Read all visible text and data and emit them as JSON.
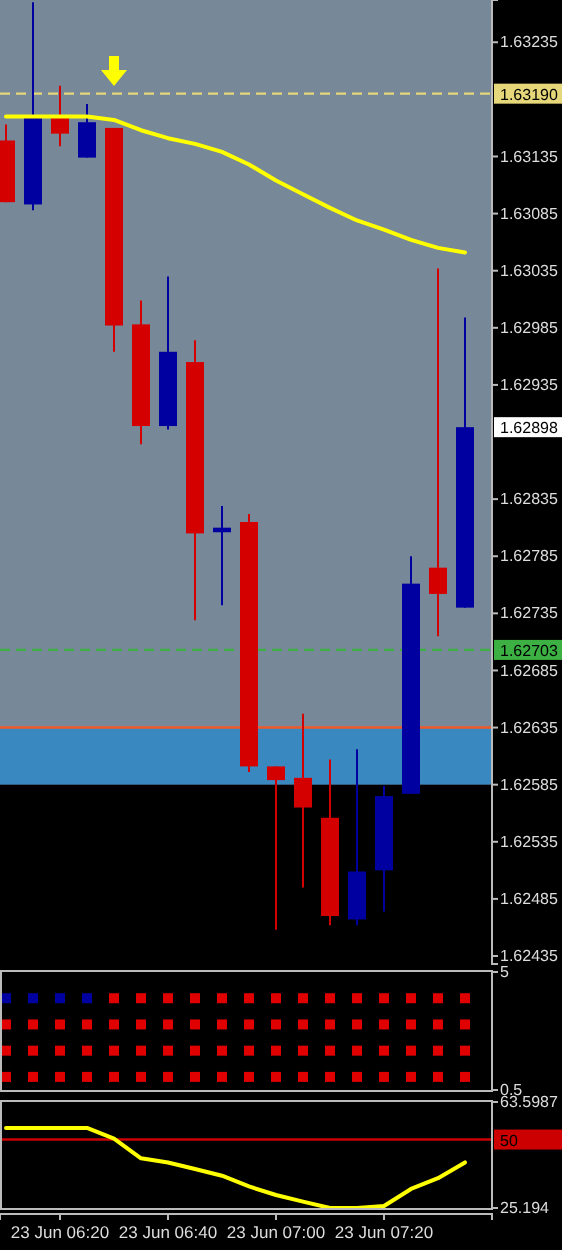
{
  "chart_data": [
    {
      "type": "candlestick",
      "categories": [
        null,
        null,
        null,
        null,
        null,
        null,
        null,
        null,
        null,
        null,
        null,
        null,
        null,
        null,
        null,
        null,
        null,
        null
      ],
      "tick_labels": "y",
      "ylim": [
        1.62428,
        1.63272
      ],
      "yticks": [
        1.63235,
        1.63135,
        1.63085,
        1.63035,
        1.62985,
        1.62935,
        1.62835,
        1.62785,
        1.62735,
        1.62685,
        1.62635,
        1.62585,
        1.62535,
        1.62485,
        1.62435
      ],
      "series": [
        {
          "ohlc": [
            [
              1.63149,
              1.63163,
              1.63095,
              1.63095
            ],
            [
              1.63093,
              1.6327,
              1.63088,
              1.6317
            ],
            [
              1.6317,
              1.63197,
              1.63144,
              1.63155
            ],
            [
              1.63134,
              1.63181,
              1.63134,
              1.63165
            ],
            [
              1.6316,
              1.6316,
              1.62964,
              1.62987
            ],
            [
              1.62988,
              1.63009,
              1.62883,
              1.62899
            ],
            [
              1.62899,
              1.6303,
              1.62896,
              1.62964
            ],
            [
              1.62955,
              1.62974,
              1.62729,
              1.62805
            ],
            [
              1.62806,
              1.62829,
              1.62742,
              1.6281
            ],
            [
              1.62815,
              1.62822,
              1.62596,
              1.62601
            ],
            [
              1.62601,
              1.62601,
              1.62458,
              1.62589
            ],
            [
              1.62591,
              1.62647,
              1.62495,
              1.62565
            ],
            [
              1.62556,
              1.62607,
              1.62462,
              1.6247
            ],
            [
              1.62467,
              1.62616,
              1.62462,
              1.62509
            ],
            [
              1.6251,
              1.62584,
              1.62474,
              1.62575
            ],
            [
              1.62577,
              1.62785,
              1.62577,
              1.62761
            ],
            [
              1.62775,
              1.63037,
              1.62715,
              1.62752
            ],
            [
              1.6274,
              1.62994,
              1.6274,
              1.62898
            ]
          ],
          "colors": [
            "#d40000",
            "#0000a0",
            "#d40000",
            "#0000a0",
            "#d40000",
            "#d40000",
            "#0000a0",
            "#d40000",
            "#0000a0",
            "#d40000",
            "#d40000",
            "#d40000",
            "#d40000",
            "#0000a0",
            "#0000a0",
            "#0000a0",
            "#d40000",
            "#0000a0"
          ]
        },
        {
          "type": "line",
          "color": "#ffff00",
          "values": [
            1.6317,
            1.6317,
            1.6317,
            1.6317,
            1.63167,
            1.63158,
            1.63151,
            1.63146,
            1.63139,
            1.63128,
            1.63114,
            1.63102,
            1.6309,
            1.63079,
            1.63071,
            1.63062,
            1.63055,
            1.63051
          ]
        }
      ],
      "ref_lines": [
        {
          "axis": "y",
          "value": 1.6319,
          "label": "1.63190",
          "color": "#e6d87a",
          "line_style": "dashed"
        },
        {
          "axis": "y",
          "value": 1.62703,
          "label": "1.62703",
          "color": "#3cb043",
          "line_style": "dashed"
        },
        {
          "axis": "y",
          "value": 1.62635,
          "color": "#f05a28",
          "line_style": "solid"
        }
      ],
      "bands": [
        {
          "axis": "y",
          "from": 1.62585,
          "to": 1.62635,
          "color": "#3a88c0"
        },
        {
          "axis": "y",
          "from": 1.62428,
          "to": 1.62585,
          "color": "#000000"
        }
      ],
      "annotations": [
        "1.62898"
      ]
    },
    {
      "type": "scatter",
      "categories": [
        null,
        null,
        null,
        null,
        null,
        null,
        null,
        null,
        null,
        null,
        null,
        null,
        null,
        null,
        null,
        null,
        null,
        null
      ],
      "tick_labels": "y",
      "ylim": [
        0.5,
        5
      ],
      "yticks": [
        0.5,
        5
      ],
      "marker": "square",
      "series": [
        {
          "values": [
            4,
            4,
            4,
            4,
            4,
            4,
            4,
            4,
            4,
            4,
            4,
            4,
            4,
            4,
            4,
            4,
            4,
            4
          ],
          "colors": [
            "#0000a0",
            "#0000a0",
            "#0000a0",
            "#0000a0",
            "#e00000",
            "#e00000",
            "#e00000",
            "#e00000",
            "#e00000",
            "#e00000",
            "#e00000",
            "#e00000",
            "#e00000",
            "#e00000",
            "#e00000",
            "#e00000",
            "#e00000",
            "#e00000"
          ]
        },
        {
          "values": [
            3,
            3,
            3,
            3,
            3,
            3,
            3,
            3,
            3,
            3,
            3,
            3,
            3,
            3,
            3,
            3,
            3,
            3
          ],
          "color": "#e00000"
        },
        {
          "values": [
            2,
            2,
            2,
            2,
            2,
            2,
            2,
            2,
            2,
            2,
            2,
            2,
            2,
            2,
            2,
            2,
            2,
            2
          ],
          "color": "#e00000"
        },
        {
          "values": [
            1,
            1,
            1,
            1,
            1,
            1,
            1,
            1,
            1,
            1,
            1,
            1,
            1,
            1,
            1,
            1,
            1,
            1
          ],
          "color": "#e00000"
        }
      ]
    },
    {
      "type": "line",
      "categories": [
        null,
        null,
        "23 Jun 06:20",
        null,
        null,
        null,
        "23 Jun 06:40",
        null,
        null,
        null,
        "23 Jun 07:00",
        null,
        null,
        null,
        "23 Jun 07:20",
        null,
        null,
        null
      ],
      "ylim": [
        25.194,
        63.5987
      ],
      "yticks": [
        25.194,
        63.5987
      ],
      "color": "#ffff00",
      "values": [
        54.2,
        54.2,
        54.2,
        54.2,
        50.3,
        43.2,
        41.7,
        39.3,
        36.9,
        33,
        29.9,
        27.5,
        25.2,
        25.2,
        25.9,
        32.1,
        36,
        41.7
      ],
      "ref_lines": [
        {
          "axis": "y",
          "value": 50,
          "label": "50",
          "color": "#cc0000",
          "line_style": "solid"
        }
      ]
    }
  ]
}
